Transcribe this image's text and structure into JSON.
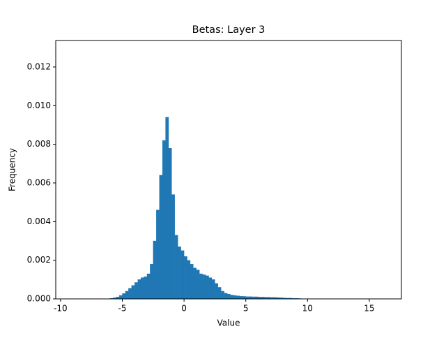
{
  "chart_data": {
    "type": "histogram",
    "title": "Betas: Layer 3",
    "xlabel": "Value",
    "ylabel": "Frequency",
    "color": "#1f77b4",
    "bins": [
      -7,
      -6.75,
      -6.5,
      -6.25,
      -6,
      -5.75,
      -5.5,
      -5.25,
      -5,
      -4.75,
      -4.5,
      -4.25,
      -4,
      -3.75,
      -3.5,
      -3.25,
      -3,
      -2.75,
      -2.5,
      -2.25,
      -2,
      -1.75,
      -1.5,
      -1.25,
      -1,
      -0.75,
      -0.5,
      -0.25,
      0,
      0.25,
      0.5,
      0.75,
      1,
      1.25,
      1.5,
      1.75,
      2,
      2.25,
      2.5,
      2.75,
      3,
      3.25,
      3.5,
      3.75,
      4,
      4.25,
      4.5,
      4.75,
      5,
      5.25,
      5.5,
      5.75,
      6,
      6.25,
      6.5,
      6.75,
      7,
      7.25,
      7.5,
      7.75,
      8,
      8.25,
      8.5,
      8.75,
      9,
      9.25,
      9.5,
      9.75,
      10,
      10.25,
      10.5
    ],
    "values": [
      0,
      0,
      0,
      1e-05,
      3e-05,
      6e-05,
      0.0001,
      0.00018,
      0.00028,
      0.0004,
      0.00055,
      0.0007,
      0.00085,
      0.001,
      0.0011,
      0.00115,
      0.0013,
      0.0018,
      0.003,
      0.0046,
      0.0064,
      0.0082,
      0.0094,
      0.0078,
      0.0054,
      0.0033,
      0.0027,
      0.0025,
      0.0022,
      0.002,
      0.0018,
      0.0016,
      0.0015,
      0.0013,
      0.00125,
      0.0012,
      0.0011,
      0.001,
      0.0008,
      0.0006,
      0.0004,
      0.0003,
      0.00025,
      0.0002,
      0.00018,
      0.00016,
      0.00014,
      0.00013,
      0.00012,
      0.00012,
      0.00011,
      0.00011,
      0.0001,
      0.0001,
      9e-05,
      9e-05,
      8e-05,
      8e-05,
      7e-05,
      6e-05,
      5e-05,
      4e-05,
      4e-05,
      3e-05,
      3e-05,
      2e-05,
      1e-05,
      1e-05,
      5e-06,
      0
    ],
    "xlim": [
      -10.39,
      17.6
    ],
    "xticks": [
      -10,
      -5,
      0,
      5,
      10,
      15
    ],
    "ylim": [
      0,
      0.01337
    ],
    "yticks": [
      {
        "value": 0,
        "label": "0.000"
      },
      {
        "value": 0.002,
        "label": "0.002"
      },
      {
        "value": 0.004,
        "label": "0.004"
      },
      {
        "value": 0.006,
        "label": "0.006"
      },
      {
        "value": 0.008,
        "label": "0.008"
      },
      {
        "value": 0.01,
        "label": "0.010"
      },
      {
        "value": 0.012,
        "label": "0.012"
      }
    ]
  }
}
